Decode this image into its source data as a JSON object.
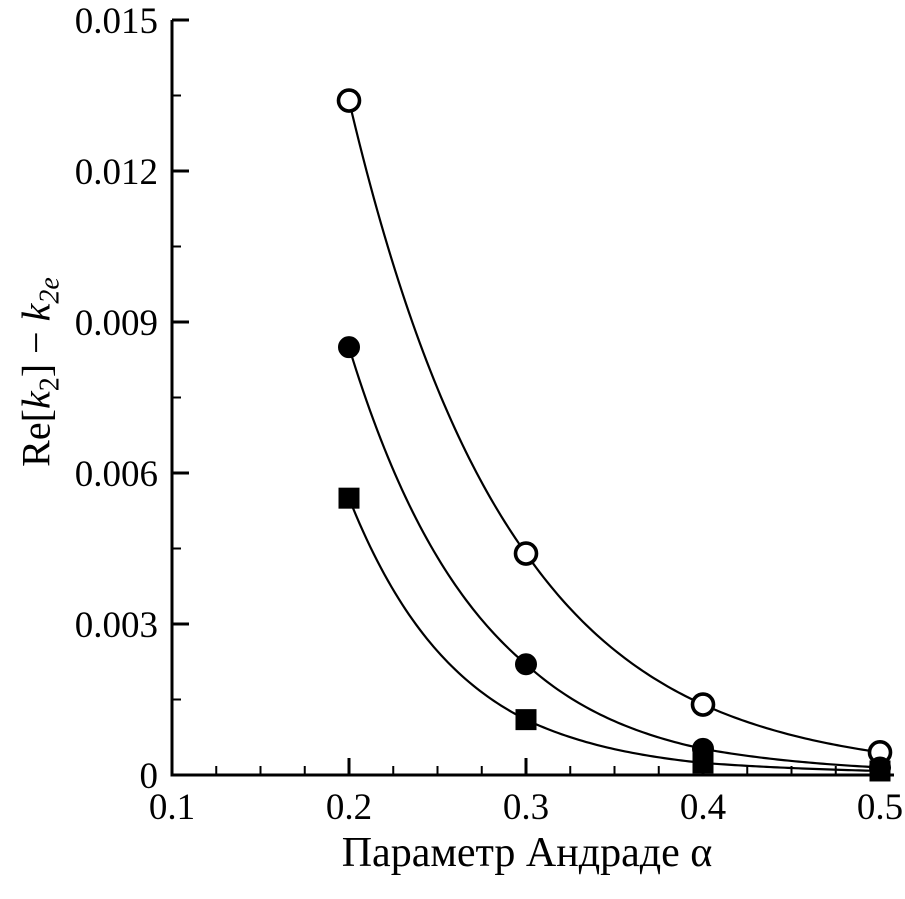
{
  "chart_data": {
    "type": "line",
    "title": "",
    "xlabel": "Параметр Андраде α",
    "ylabel": "Re[k2] − k2e",
    "ylabel_parts": [
      {
        "t": "Re[",
        "style": "normal"
      },
      {
        "t": "k",
        "style": "italic"
      },
      {
        "t": "2",
        "style": "sub"
      },
      {
        "t": "]",
        "style": "normal"
      },
      {
        "t": " − ",
        "style": "normal"
      },
      {
        "t": "k",
        "style": "italic"
      },
      {
        "t": "2e",
        "style": "subitalic"
      }
    ],
    "xlim": [
      0.1,
      0.5
    ],
    "ylim": [
      0,
      0.015
    ],
    "x_ticks": [
      0.1,
      0.2,
      0.3,
      0.4,
      0.5
    ],
    "x_tick_labels": [
      "0.1",
      "0.2",
      "0.3",
      "0.4",
      "0.5"
    ],
    "x_minor_step": 0.025,
    "y_ticks": [
      0,
      0.003,
      0.006,
      0.009,
      0.012,
      0.015
    ],
    "y_tick_labels": [
      "0",
      "0.003",
      "0.006",
      "0.009",
      "0.012",
      "0.015"
    ],
    "y_minor_step": 0.0015,
    "x": [
      0.2,
      0.3,
      0.4,
      0.5
    ],
    "series": [
      {
        "name": "open-circle-series",
        "marker": "circle-open",
        "values": [
          0.0134,
          0.0044,
          0.0014,
          0.00045
        ]
      },
      {
        "name": "filled-circle-series",
        "marker": "circle-filled",
        "values": [
          0.0085,
          0.0022,
          0.00052,
          0.00015
        ]
      },
      {
        "name": "filled-square-series",
        "marker": "square-filled",
        "values": [
          0.0055,
          0.0011,
          0.00024,
          8e-05
        ]
      }
    ],
    "line_color": "#000000",
    "background": "#ffffff",
    "grid": false,
    "legend": "none"
  }
}
